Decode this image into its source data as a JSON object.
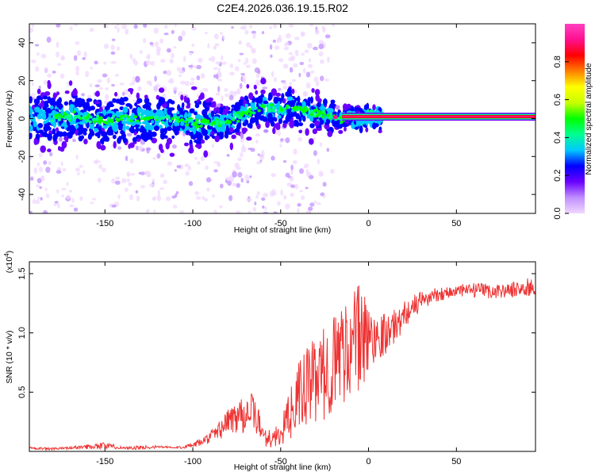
{
  "title": "C2E4.2026.036.19.15.R02",
  "chart_data": [
    {
      "type": "heatmap",
      "xlabel": "Height of straight line (km)",
      "ylabel": "Frequency (Hz)",
      "xlim": [
        -193,
        95
      ],
      "ylim": [
        -50,
        50
      ],
      "xticks": [
        -150,
        -100,
        -50,
        0,
        50
      ],
      "xtick_labels": [
        "-150",
        "-100",
        "-50",
        "0",
        "50"
      ],
      "yticks": [
        -40,
        -20,
        0,
        20,
        40
      ],
      "ytick_labels": [
        "-40",
        "-20",
        "0",
        "20",
        "40"
      ],
      "frequency_trend_hz": {
        "x": [
          -190,
          -170,
          -150,
          -130,
          -110,
          -100,
          -90,
          -80,
          -70,
          -60,
          -50,
          -45,
          -40,
          -35,
          -30,
          -25,
          -20,
          -15,
          -10,
          -5,
          0,
          5,
          10,
          20,
          30,
          50,
          70,
          90
        ],
        "y": [
          0,
          1,
          -1,
          0,
          0,
          -2,
          -3,
          -2,
          3,
          6,
          4,
          7,
          5,
          4,
          3,
          2,
          1,
          0,
          1,
          0,
          1,
          1,
          1,
          1,
          1,
          1,
          1,
          1
        ]
      },
      "colorbar": {
        "label": "Normalized spectral amplitude",
        "range": [
          0,
          1
        ],
        "ticks": [
          0.0,
          0.2,
          0.4,
          0.6,
          0.8
        ],
        "tick_labels": [
          "0.0",
          "0.2",
          "0.4",
          "0.6",
          "0.8"
        ],
        "colors": [
          "#f0d8ff",
          "#c090ff",
          "#6a00ff",
          "#0000ff",
          "#00c8ff",
          "#00ff90",
          "#00ff00",
          "#c8ff00",
          "#ffff00",
          "#ff8000",
          "#ff0000",
          "#ff1090",
          "#ff40c0"
        ]
      }
    },
    {
      "type": "line",
      "xlabel": "Height of straight line (km)",
      "ylabel": "SNR (10 * v/v)",
      "y_multiplier_label": "(x10",
      "y_multiplier_exp": "4",
      "xlim": [
        -193,
        95
      ],
      "ylim": [
        0,
        1.6
      ],
      "xticks": [
        -150,
        -100,
        -50,
        0,
        50
      ],
      "xtick_labels": [
        "-150",
        "-100",
        "-50",
        "0",
        "50"
      ],
      "yticks": [
        0.5,
        1.0,
        1.5
      ],
      "ytick_labels": [
        "0.5",
        "1.0",
        "1.5"
      ],
      "series": [
        {
          "name": "SNR",
          "color": "#ee3333",
          "x": [
            -193,
            -180,
            -170,
            -160,
            -150,
            -140,
            -130,
            -120,
            -110,
            -100,
            -95,
            -90,
            -85,
            -80,
            -75,
            -70,
            -65,
            -60,
            -55,
            -50,
            -45,
            -40,
            -35,
            -30,
            -25,
            -20,
            -15,
            -10,
            -5,
            0,
            5,
            10,
            15,
            20,
            25,
            30,
            40,
            50,
            60,
            70,
            80,
            90,
            95
          ],
          "values": [
            0.03,
            0.02,
            0.03,
            0.04,
            0.05,
            0.03,
            0.03,
            0.04,
            0.03,
            0.05,
            0.08,
            0.12,
            0.18,
            0.25,
            0.3,
            0.35,
            0.32,
            0.15,
            0.1,
            0.15,
            0.3,
            0.45,
            0.55,
            0.6,
            0.65,
            0.75,
            0.85,
            0.9,
            0.95,
            0.95,
            0.98,
            1.0,
            1.05,
            1.15,
            1.22,
            1.27,
            1.33,
            1.35,
            1.36,
            1.35,
            1.36,
            1.38,
            1.38
          ],
          "noise_amplitude": [
            0.01,
            0.01,
            0.01,
            0.02,
            0.03,
            0.01,
            0.02,
            0.01,
            0.01,
            0.02,
            0.03,
            0.05,
            0.08,
            0.12,
            0.15,
            0.2,
            0.15,
            0.1,
            0.08,
            0.1,
            0.2,
            0.3,
            0.35,
            0.35,
            0.4,
            0.4,
            0.45,
            0.45,
            0.5,
            0.3,
            0.2,
            0.18,
            0.15,
            0.12,
            0.1,
            0.08,
            0.06,
            0.06,
            0.06,
            0.06,
            0.06,
            0.08,
            0.08
          ]
        }
      ]
    }
  ]
}
